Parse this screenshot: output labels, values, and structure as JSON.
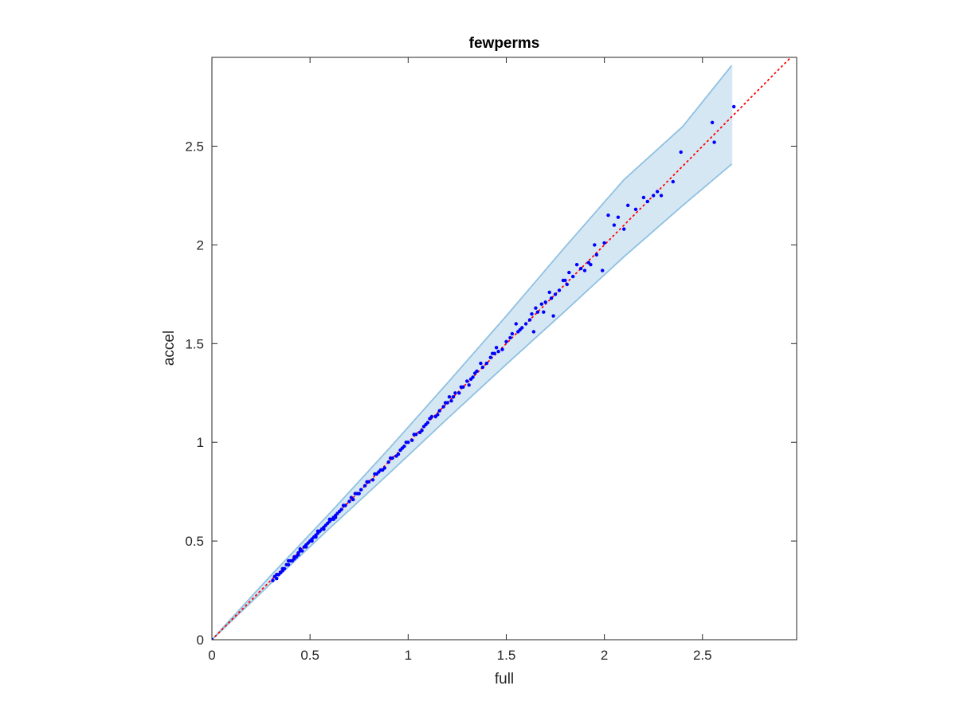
{
  "chart_data": {
    "type": "scatter",
    "title": "fewperms",
    "xlabel": "full",
    "ylabel": "accel",
    "xlim": [
      0,
      2.98
    ],
    "ylim": [
      0,
      2.95
    ],
    "xticks": [
      0,
      0.5,
      1,
      1.5,
      2,
      2.5
    ],
    "xtick_labels": [
      "0",
      "0.5",
      "1",
      "1.5",
      "2",
      "2.5"
    ],
    "yticks": [
      0,
      0.5,
      1,
      1.5,
      2,
      2.5
    ],
    "ytick_labels": [
      "0",
      "0.5",
      "1",
      "1.5",
      "2",
      "2.5"
    ],
    "grid": false,
    "box": true,
    "colors": {
      "points": "#0000ff",
      "band_fill": "#d6e7f4",
      "band_edge": "#8fc1e1",
      "reference_line": "#ff0000",
      "axes": "#262626"
    },
    "reference_line": {
      "style": "dotted",
      "x": [
        0,
        2.98
      ],
      "y": [
        0,
        2.98
      ]
    },
    "band": {
      "x": [
        0,
        0.3,
        0.6,
        0.9,
        1.2,
        1.5,
        1.8,
        2.1,
        2.4,
        2.65
      ],
      "upper": [
        0,
        0.325,
        0.64,
        0.965,
        1.3,
        1.64,
        1.99,
        2.33,
        2.6,
        2.91
      ],
      "lower": [
        0,
        0.285,
        0.565,
        0.84,
        1.12,
        1.395,
        1.665,
        1.94,
        2.2,
        2.41
      ]
    },
    "points": [
      [
        0,
        0
      ],
      [
        0.31,
        0.3
      ],
      [
        0.32,
        0.32
      ],
      [
        0.33,
        0.31
      ],
      [
        0.34,
        0.33
      ],
      [
        0.35,
        0.34
      ],
      [
        0.36,
        0.35
      ],
      [
        0.37,
        0.36
      ],
      [
        0.38,
        0.38
      ],
      [
        0.39,
        0.38
      ],
      [
        0.4,
        0.4
      ],
      [
        0.41,
        0.4
      ],
      [
        0.42,
        0.42
      ],
      [
        0.43,
        0.42
      ],
      [
        0.44,
        0.44
      ],
      [
        0.45,
        0.45
      ],
      [
        0.46,
        0.45
      ],
      [
        0.47,
        0.47
      ],
      [
        0.48,
        0.48
      ],
      [
        0.49,
        0.49
      ],
      [
        0.5,
        0.5
      ],
      [
        0.51,
        0.51
      ],
      [
        0.52,
        0.52
      ],
      [
        0.53,
        0.53
      ],
      [
        0.54,
        0.54
      ],
      [
        0.55,
        0.55
      ],
      [
        0.56,
        0.56
      ],
      [
        0.57,
        0.57
      ],
      [
        0.58,
        0.58
      ],
      [
        0.59,
        0.59
      ],
      [
        0.6,
        0.6
      ],
      [
        0.61,
        0.61
      ],
      [
        0.62,
        0.62
      ],
      [
        0.63,
        0.63
      ],
      [
        0.64,
        0.64
      ],
      [
        0.65,
        0.65
      ],
      [
        0.66,
        0.66
      ],
      [
        0.68,
        0.68
      ],
      [
        0.7,
        0.7
      ],
      [
        0.72,
        0.71
      ],
      [
        0.74,
        0.74
      ],
      [
        0.76,
        0.76
      ],
      [
        0.78,
        0.78
      ],
      [
        0.8,
        0.8
      ],
      [
        0.82,
        0.81
      ],
      [
        0.84,
        0.84
      ],
      [
        0.86,
        0.86
      ],
      [
        0.88,
        0.87
      ],
      [
        0.9,
        0.9
      ],
      [
        0.92,
        0.92
      ],
      [
        0.94,
        0.93
      ],
      [
        0.96,
        0.96
      ],
      [
        0.98,
        0.98
      ],
      [
        1.0,
        1.0
      ],
      [
        1.02,
        1.01
      ],
      [
        1.04,
        1.04
      ],
      [
        1.06,
        1.05
      ],
      [
        1.08,
        1.08
      ],
      [
        1.1,
        1.1
      ],
      [
        1.12,
        1.13
      ],
      [
        1.14,
        1.13
      ],
      [
        1.16,
        1.16
      ],
      [
        1.18,
        1.18
      ],
      [
        1.2,
        1.2
      ],
      [
        1.22,
        1.21
      ],
      [
        1.24,
        1.25
      ],
      [
        1.26,
        1.25
      ],
      [
        1.28,
        1.28
      ],
      [
        1.3,
        1.31
      ],
      [
        1.32,
        1.32
      ],
      [
        1.35,
        1.36
      ],
      [
        1.38,
        1.38
      ],
      [
        1.4,
        1.4
      ],
      [
        1.43,
        1.45
      ],
      [
        1.46,
        1.46
      ],
      [
        1.5,
        1.51
      ],
      [
        1.53,
        1.55
      ],
      [
        1.56,
        1.56
      ],
      [
        1.6,
        1.6
      ],
      [
        1.63,
        1.65
      ],
      [
        1.66,
        1.66
      ],
      [
        1.7,
        1.71
      ],
      [
        1.73,
        1.73
      ],
      [
        1.77,
        1.77
      ],
      [
        1.8,
        1.82
      ],
      [
        1.84,
        1.84
      ],
      [
        1.88,
        1.88
      ],
      [
        1.92,
        1.91
      ],
      [
        1.96,
        1.95
      ],
      [
        2.0,
        2.01
      ],
      [
        2.05,
        2.1
      ],
      [
        2.1,
        2.08
      ],
      [
        2.16,
        2.18
      ],
      [
        2.22,
        2.22
      ],
      [
        2.27,
        2.27
      ],
      [
        2.35,
        2.32
      ],
      [
        2.39,
        2.47
      ],
      [
        2.55,
        2.62
      ],
      [
        2.56,
        2.52
      ],
      [
        2.66,
        2.7
      ],
      [
        0.33,
        0.33
      ],
      [
        0.36,
        0.36
      ],
      [
        0.39,
        0.4
      ],
      [
        0.42,
        0.41
      ],
      [
        0.45,
        0.46
      ],
      [
        0.48,
        0.47
      ],
      [
        0.51,
        0.5
      ],
      [
        0.54,
        0.55
      ],
      [
        0.57,
        0.56
      ],
      [
        0.6,
        0.61
      ],
      [
        0.63,
        0.62
      ],
      [
        0.67,
        0.68
      ],
      [
        0.71,
        0.72
      ],
      [
        0.75,
        0.74
      ],
      [
        0.79,
        0.8
      ],
      [
        0.83,
        0.84
      ],
      [
        0.87,
        0.86
      ],
      [
        0.91,
        0.92
      ],
      [
        0.95,
        0.94
      ],
      [
        0.99,
        1.0
      ],
      [
        1.03,
        1.04
      ],
      [
        1.07,
        1.06
      ],
      [
        1.11,
        1.12
      ],
      [
        1.15,
        1.14
      ],
      [
        1.19,
        1.2
      ],
      [
        1.23,
        1.23
      ],
      [
        1.27,
        1.28
      ],
      [
        1.31,
        1.29
      ],
      [
        1.34,
        1.35
      ],
      [
        1.37,
        1.4
      ],
      [
        1.42,
        1.43
      ],
      [
        1.45,
        1.48
      ],
      [
        1.48,
        1.47
      ],
      [
        1.52,
        1.53
      ],
      [
        1.55,
        1.6
      ],
      [
        1.58,
        1.58
      ],
      [
        1.62,
        1.62
      ],
      [
        1.65,
        1.68
      ],
      [
        1.68,
        1.7
      ],
      [
        1.72,
        1.76
      ],
      [
        1.75,
        1.75
      ],
      [
        1.79,
        1.82
      ],
      [
        1.82,
        1.86
      ],
      [
        1.86,
        1.9
      ],
      [
        1.9,
        1.87
      ],
      [
        1.95,
        2.0
      ],
      [
        2.02,
        2.15
      ],
      [
        2.07,
        2.14
      ],
      [
        2.12,
        2.2
      ],
      [
        2.25,
        2.25
      ],
      [
        0.35,
        0.34
      ],
      [
        0.44,
        0.43
      ],
      [
        0.53,
        0.52
      ],
      [
        0.62,
        0.61
      ],
      [
        0.73,
        0.74
      ],
      [
        0.85,
        0.85
      ],
      [
        0.97,
        0.97
      ],
      [
        1.09,
        1.09
      ],
      [
        1.21,
        1.23
      ],
      [
        1.33,
        1.33
      ],
      [
        1.44,
        1.45
      ],
      [
        1.57,
        1.57
      ],
      [
        1.69,
        1.66
      ],
      [
        1.81,
        1.8
      ],
      [
        1.93,
        1.9
      ],
      [
        1.99,
        1.87
      ],
      [
        2.2,
        2.24
      ],
      [
        2.29,
        2.25
      ],
      [
        1.74,
        1.64
      ],
      [
        1.64,
        1.56
      ]
    ]
  }
}
